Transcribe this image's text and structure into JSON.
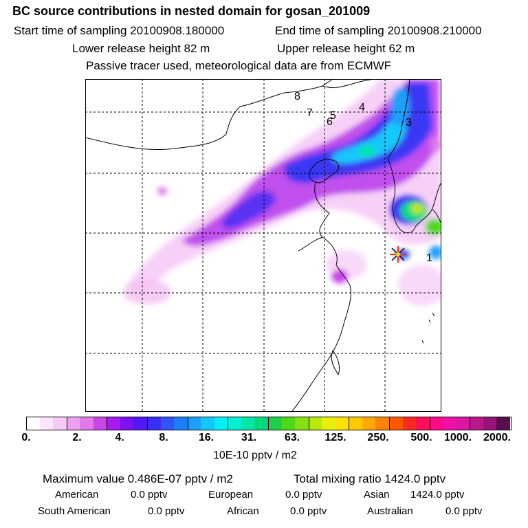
{
  "header": {
    "title": "BC  source contributions in nested domain for gosan_201009",
    "start_label": "Start time of sampling 20100908.180000",
    "end_label": "End time of sampling 20100908.210000",
    "lower_label": "Lower release height   82 m",
    "upper_label": "Upper release height   62 m",
    "note": "Passive tracer used, meteorological data are from ECMWF"
  },
  "map": {
    "markers": [
      "1",
      "3",
      "4",
      "5",
      "6",
      "7",
      "8"
    ],
    "receptor_icon": "star-icon"
  },
  "colorbar": {
    "colors": [
      "#ffffff",
      "#fde6fd",
      "#f8c8f8",
      "#f0a0f0",
      "#e07ae8",
      "#c845e8",
      "#a91af0",
      "#7b12f0",
      "#5418f2",
      "#3a30f5",
      "#2f55f8",
      "#1f7cfa",
      "#1aa0fb",
      "#12c8fb",
      "#00f0f6",
      "#00f0d2",
      "#00e6a6",
      "#00d880",
      "#20d048",
      "#4ed818",
      "#86e012",
      "#bbe80c",
      "#e8f008",
      "#ffe000",
      "#ffc800",
      "#ffa800",
      "#ff8200",
      "#ff5800",
      "#ff2a20",
      "#ff1058",
      "#ff0a88",
      "#f010a8",
      "#d818a0",
      "#b81a8c",
      "#981478",
      "#5a1050"
    ],
    "tick_labels": [
      "0.",
      "2.",
      "4.",
      "8.",
      "16.",
      "31.",
      "63.",
      "125.",
      "250.",
      "500.",
      "1000.",
      "2000."
    ],
    "units": "10E-10 pptv / m2"
  },
  "stats": {
    "max_value": "Maximum value  0.486E-07 pptv / m2",
    "total_mixing": "Total mixing ratio      1424.0 pptv",
    "american_label": "American",
    "american_value": "0.0 pptv",
    "european_label": "European",
    "european_value": "0.0 pptv",
    "asian_label": "Asian",
    "asian_value": "1424.0 pptv",
    "south_american_label": "South American",
    "south_american_value": "0.0 pptv",
    "african_label": "African",
    "african_value": "0.0 pptv",
    "australian_label": "Australian",
    "australian_value": "0.0 pptv"
  }
}
